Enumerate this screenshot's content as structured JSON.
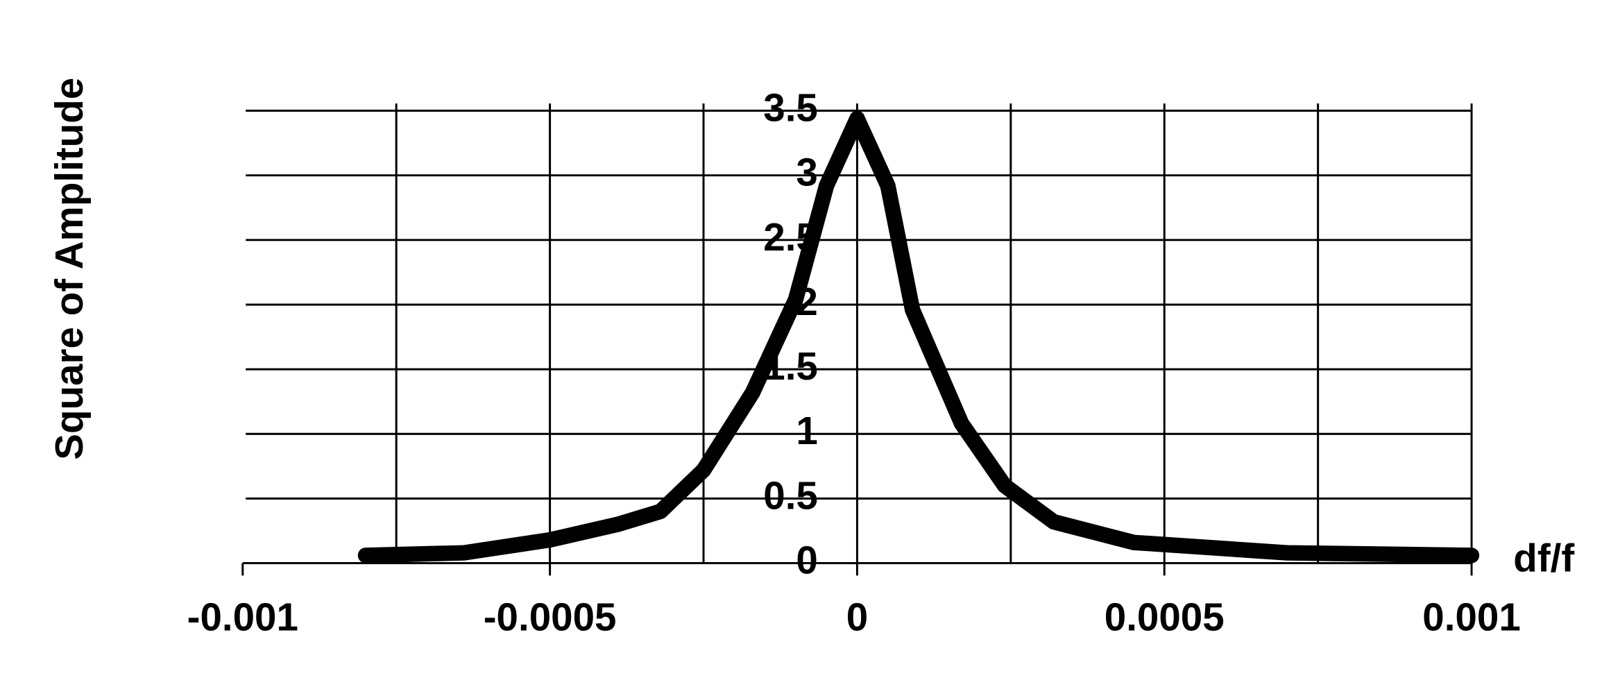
{
  "chart_data": {
    "type": "line",
    "y_axis_label": "Square of Amplitude",
    "x_axis_label": "df/f",
    "x": [
      -0.0008,
      -0.00064,
      -0.0005,
      -0.00039,
      -0.00032,
      -0.00025,
      -0.00017,
      -0.0001,
      -5e-05,
      0,
      5e-05,
      9e-05,
      0.00017,
      0.00024,
      0.00032,
      0.00045,
      0.0007,
      0.001
    ],
    "series": [
      {
        "color": "#000000",
        "values": [
          0.06,
          0.08,
          0.18,
          0.3,
          0.4,
          0.72,
          1.32,
          2.04,
          2.92,
          3.44,
          2.92,
          1.96,
          1.08,
          0.6,
          0.32,
          0.16,
          0.08,
          0.06
        ]
      }
    ],
    "xlim": [
      -0.001,
      0.001
    ],
    "xticks": [
      -0.001,
      -0.0005,
      0,
      0.0005,
      0.001
    ],
    "xgrid": [
      -0.00075,
      -0.0005,
      -0.00025,
      0,
      0.00025,
      0.0005,
      0.00075,
      0.001
    ],
    "ylim": [
      0,
      3.5
    ],
    "yticks": [
      0,
      0.5,
      1,
      1.5,
      2,
      2.5,
      3,
      3.5
    ],
    "grid": true
  }
}
